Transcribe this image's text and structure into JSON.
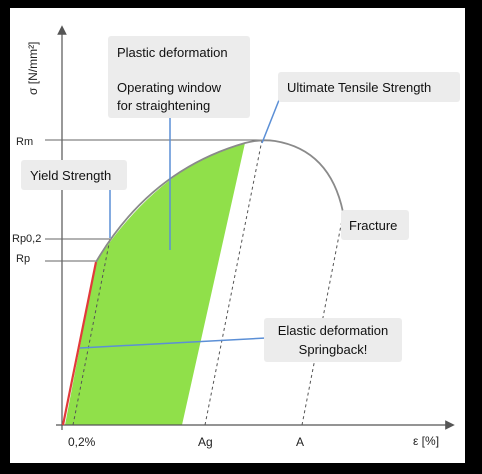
{
  "axes": {
    "y_label": "σ [N/mm²]",
    "x_label": "ε [%]"
  },
  "y_ticks": {
    "rm": "Rm",
    "rp02": "Rp0,2",
    "rp": "Rp"
  },
  "x_ticks": {
    "offset": "0,2%",
    "ag": "Ag",
    "a": "A"
  },
  "callouts": {
    "plastic_title": "Plastic deformation",
    "window_line1": "Operating window",
    "window_line2": "for straightening",
    "uts": "Ultimate Tensile Strength",
    "yield": "Yield Strength",
    "fracture": "Fracture",
    "elastic_line1": "Elastic deformation",
    "elastic_line2": "Springback!"
  },
  "colors": {
    "background": "#000000",
    "plot_area": "#ffffff",
    "window_fill": "#90e04a",
    "elastic_line": "#e23a3a",
    "curve": "#8a8a8a",
    "callout_line": "#5b8fd6"
  }
}
